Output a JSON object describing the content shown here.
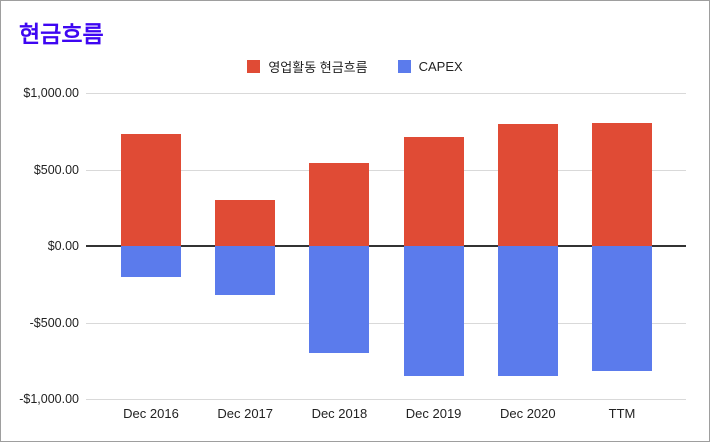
{
  "frame": {
    "background": "#ffffff",
    "border_color": "#9e9e9e"
  },
  "header": {
    "title": "현금흐름",
    "title_color": "#3e06f2"
  },
  "chart_data": {
    "type": "bar",
    "title": "현금흐름",
    "categories": [
      "Dec 2016",
      "Dec 2017",
      "Dec 2018",
      "Dec 2019",
      "Dec 2020",
      "TTM"
    ],
    "series": [
      {
        "name": "영업활동 현금흐름",
        "color": "#e04b35",
        "values": [
          730,
          300,
          540,
          715,
          800,
          805
        ]
      },
      {
        "name": "CAPEX",
        "color": "#5b7bec",
        "values": [
          -200,
          -320,
          -700,
          -850,
          -850,
          -820
        ]
      }
    ],
    "xlabel": "",
    "ylabel": "",
    "ylim": [
      -1000,
      1000
    ],
    "ytick_labels": [
      "$1,000.00",
      "$500.00",
      "$0.00",
      "-$500.00",
      "-$1,000.00"
    ],
    "ytick_values": [
      1000,
      500,
      0,
      -500,
      -1000
    ],
    "grid": true,
    "legend_position": "top-center",
    "axis_text_color": "#222222",
    "gridline_color": "#d9d9d9",
    "zero_line_color": "#333333"
  }
}
